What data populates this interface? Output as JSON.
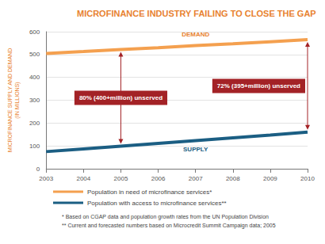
{
  "chart_data": {
    "type": "line",
    "title": "MICROFINANCE INDUSTRY FAILING TO CLOSE THE GAP",
    "y_label": "MICROFINANCE SUPPLY AND DEMAND (IN MILLIONS)",
    "x": [
      2003,
      2004,
      2005,
      2006,
      2007,
      2008,
      2009,
      2010
    ],
    "series": [
      {
        "name": "Population in need of microfinance services*",
        "color": "#f4a04f",
        "values": [
          505,
          513,
          522,
          530,
          539,
          547,
          556,
          565
        ]
      },
      {
        "name": "Population with access to microfinance services**",
        "color": "#1b5e83",
        "values": [
          75,
          87,
          99,
          111,
          123,
          135,
          147,
          160
        ]
      }
    ],
    "xlim": [
      2003,
      2010
    ],
    "xticks": [
      2003,
      2004,
      2005,
      2006,
      2007,
      2008,
      2009,
      2010
    ],
    "ylim": [
      0,
      600
    ],
    "yticks": [
      0,
      100,
      200,
      300,
      400,
      500,
      600
    ],
    "grid": true,
    "legend": "bottom",
    "line_labels": [
      {
        "text": "DEMAND",
        "x": 2007,
        "y": 575
      },
      {
        "text": "SUPPLY",
        "x": 2007,
        "y": 100
      }
    ],
    "annotations": [
      {
        "text": "80% (400+million) unserved",
        "x": 2005
      },
      {
        "text": "72% (395+million) unserved",
        "x": 2010
      }
    ],
    "notes": [
      "* Based on CGAP data and population growth rates from the UN Population Division",
      "** Current and forecasted numbers based on Microcredit Summit Campaign data; 2005"
    ]
  }
}
